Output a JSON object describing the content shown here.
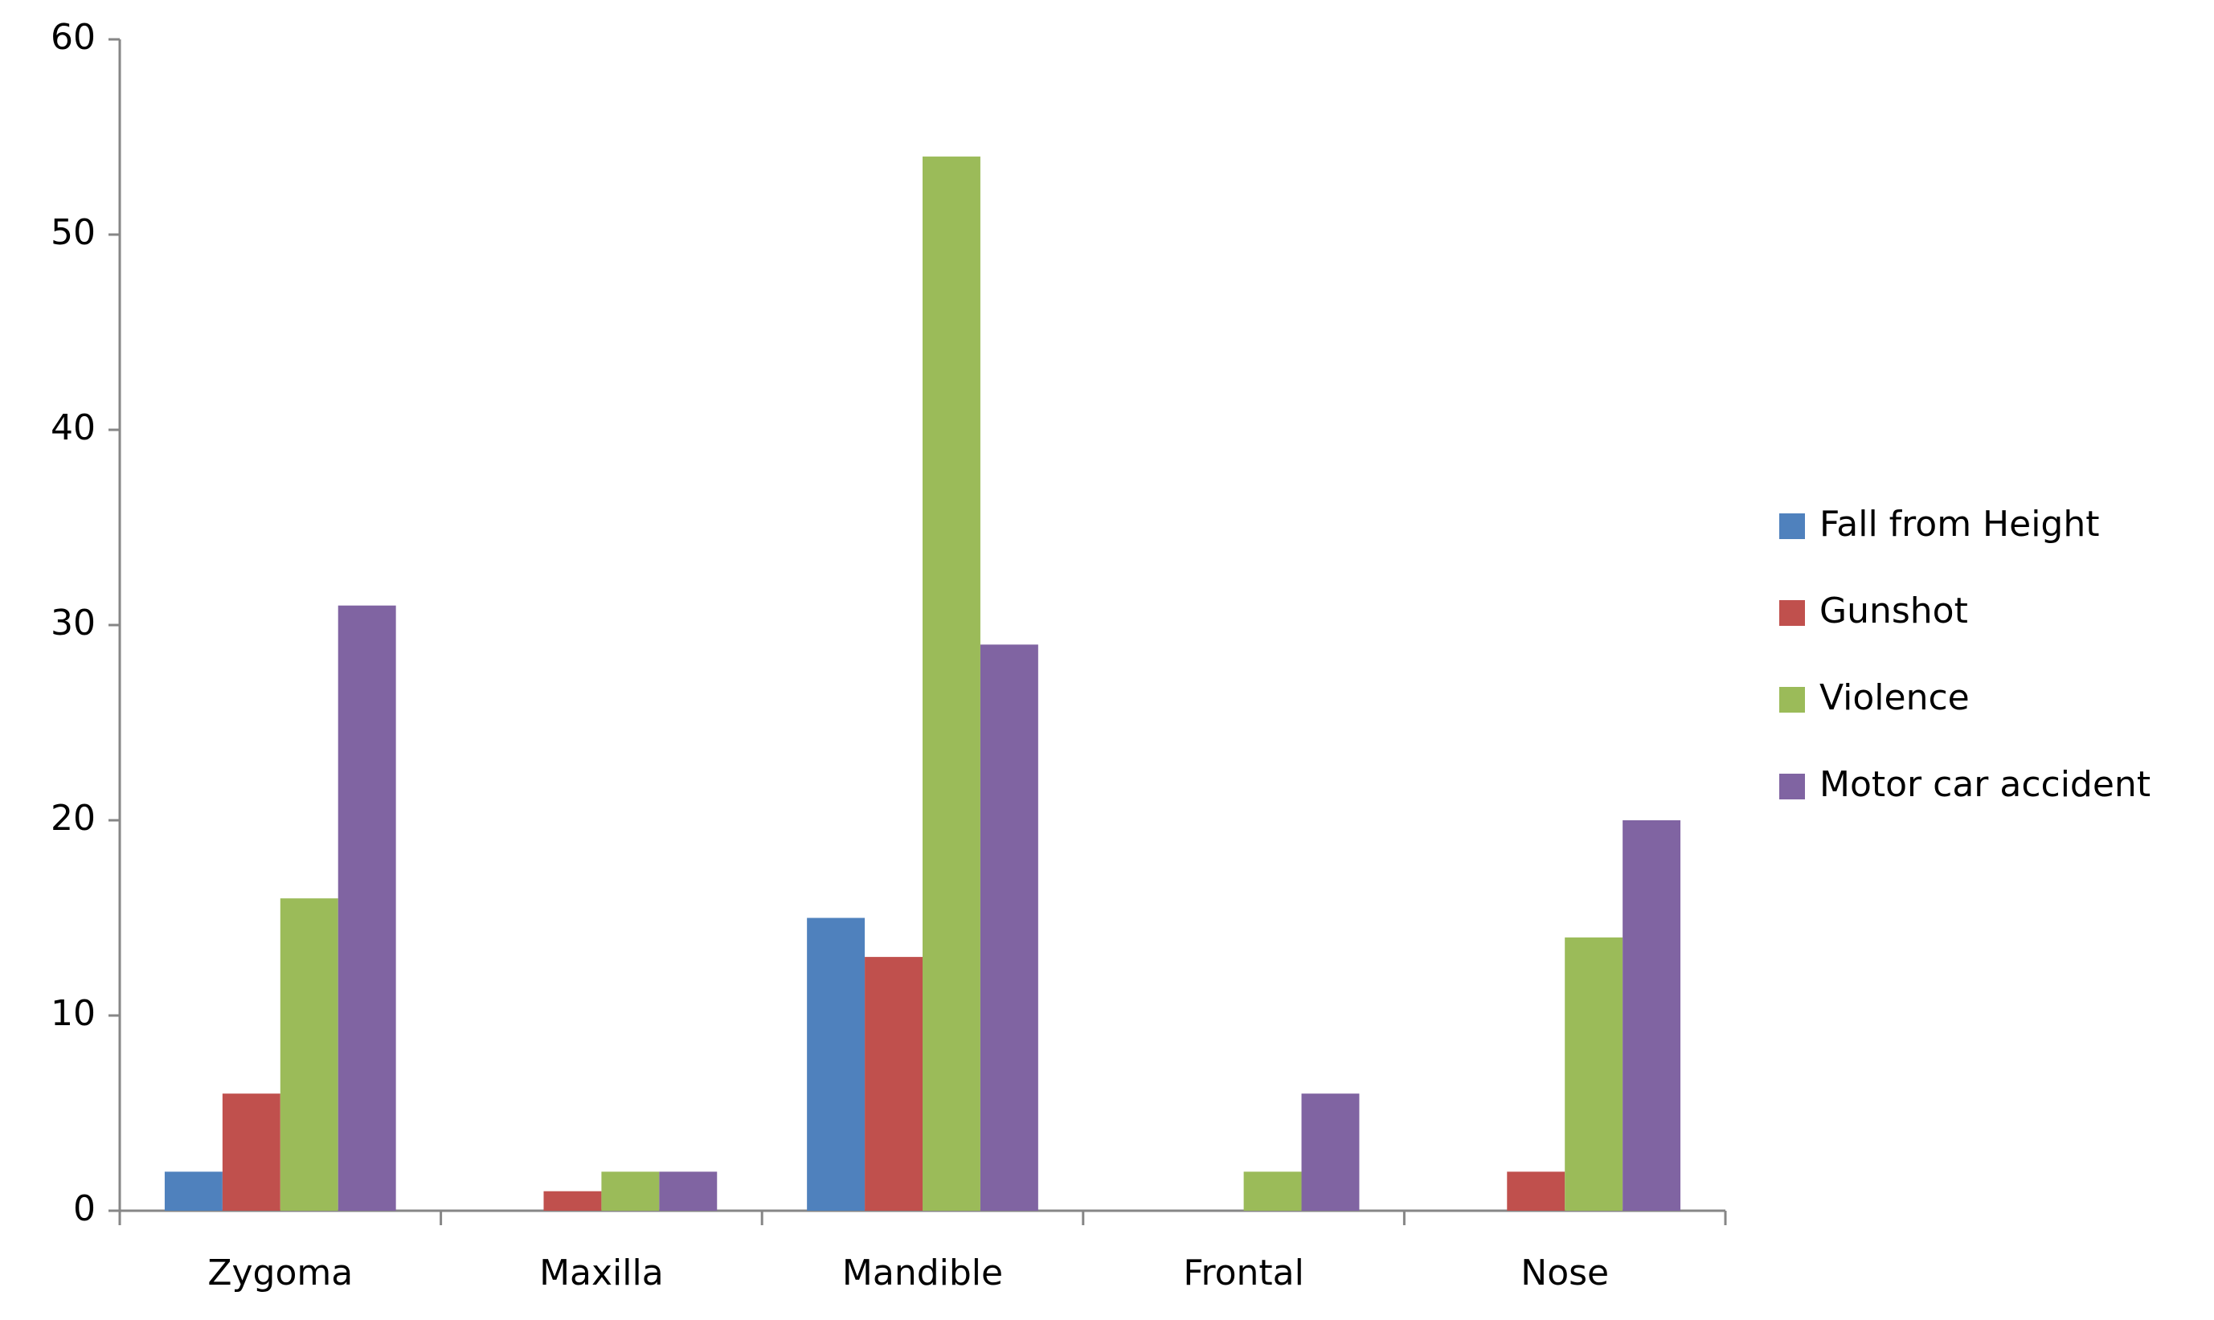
{
  "chart_data": {
    "type": "bar",
    "categories": [
      "Zygoma",
      "Maxilla",
      "Mandible",
      "Frontal",
      "Nose"
    ],
    "series": [
      {
        "name": "Fall from Height",
        "color": "#4f81bd",
        "values": [
          2,
          0,
          15,
          0,
          0
        ]
      },
      {
        "name": "Gunshot",
        "color": "#c0504d",
        "values": [
          6,
          1,
          13,
          0,
          2
        ]
      },
      {
        "name": "Violence",
        "color": "#9bbb59",
        "values": [
          16,
          2,
          54,
          2,
          14
        ]
      },
      {
        "name": "Motor car accident",
        "color": "#8064a2",
        "values": [
          31,
          2,
          29,
          6,
          20
        ]
      }
    ],
    "ylim": [
      0,
      60
    ],
    "yticks": [
      0,
      10,
      20,
      30,
      40,
      50,
      60
    ],
    "grid": false,
    "legend": "right"
  }
}
